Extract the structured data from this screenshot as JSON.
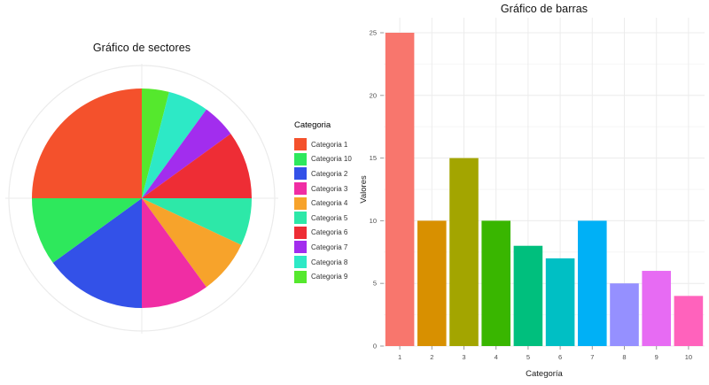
{
  "page": {
    "background": "#ffffff"
  },
  "chart_data": [
    {
      "type": "pie",
      "title": "Gráfico de sectores",
      "legend_title": "Categoria",
      "legend_position": "right",
      "total": 100,
      "grid_color": "#ebebeb",
      "slices_clockwise_from_top": [
        {
          "label": "Categoria 9",
          "value": 4,
          "color": "#55E82D"
        },
        {
          "label": "Categoria 8",
          "value": 6,
          "color": "#2DE9C6"
        },
        {
          "label": "Categoria 7",
          "value": 5,
          "color": "#A22DEE"
        },
        {
          "label": "Categoria 6",
          "value": 10,
          "color": "#EE2D35"
        },
        {
          "label": "Categoria 5",
          "value": 7,
          "color": "#2DE8A8"
        },
        {
          "label": "Categoria 4",
          "value": 8,
          "color": "#F7A32B"
        },
        {
          "label": "Categoria 3",
          "value": 10,
          "color": "#F02DA4"
        },
        {
          "label": "Categoria 2",
          "value": 15,
          "color": "#3351E8"
        },
        {
          "label": "Categoria 10",
          "value": 10,
          "color": "#2EE85C"
        },
        {
          "label": "Categoria 1",
          "value": 25,
          "color": "#F4512C"
        }
      ],
      "legend_order": [
        "Categoria 1",
        "Categoria 10",
        "Categoria 2",
        "Categoria 3",
        "Categoria 4",
        "Categoria 5",
        "Categoria 6",
        "Categoria 7",
        "Categoria 8",
        "Categoria 9"
      ]
    },
    {
      "type": "bar",
      "title": "Gráfico de barras",
      "xlabel": "Categoría",
      "ylabel": "Valores",
      "categories": [
        "1",
        "2",
        "3",
        "4",
        "5",
        "6",
        "7",
        "8",
        "9",
        "10"
      ],
      "values": [
        25,
        10,
        15,
        10,
        8,
        7,
        10,
        5,
        6,
        4
      ],
      "colors": [
        "#F8766D",
        "#D89000",
        "#A3A500",
        "#39B600",
        "#00BF7D",
        "#00BFC4",
        "#00B0F6",
        "#9590FF",
        "#E76BF3",
        "#FF62BC"
      ],
      "ylim": [
        0,
        25
      ],
      "yticks": [
        0,
        5,
        10,
        15,
        20,
        25
      ],
      "yticks_minor": [
        2.5,
        7.5,
        12.5,
        17.5,
        22.5
      ],
      "grid": "on",
      "grid_major_color": "#ececec",
      "grid_minor_color": "#f6f6f6",
      "axis_text_color": "#4d4d4d",
      "axis_title_color": "#1a1a1a",
      "tick_color": "#9b9b9b"
    }
  ]
}
